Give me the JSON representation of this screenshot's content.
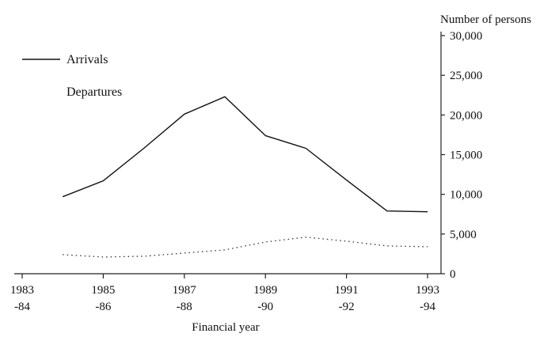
{
  "chart_data": {
    "type": "line",
    "xlabel": "Financial year",
    "ylabel": "Number of persons",
    "x_ticks": [
      {
        "year": 1983,
        "line1": "1983",
        "line2": "-84"
      },
      {
        "year": 1985,
        "line1": "1985",
        "line2": "-86"
      },
      {
        "year": 1987,
        "line1": "1987",
        "line2": "-88"
      },
      {
        "year": 1989,
        "line1": "1989",
        "line2": "-90"
      },
      {
        "year": 1991,
        "line1": "1991",
        "line2": "-92"
      },
      {
        "year": 1993,
        "line1": "1993",
        "line2": "-94"
      }
    ],
    "x": [
      1984,
      1985,
      1986,
      1987,
      1988,
      1989,
      1990,
      1991,
      1992,
      1993
    ],
    "xlim": [
      1983,
      1993
    ],
    "ylim": [
      0,
      30000
    ],
    "y_ticks": [
      0,
      5000,
      10000,
      15000,
      20000,
      25000,
      30000
    ],
    "y_tick_labels": [
      "0",
      "5,000",
      "10,000",
      "15,000",
      "20,000",
      "25,000",
      "30,000"
    ],
    "grid": false,
    "legend_position": "top-left",
    "series": [
      {
        "name": "Arrivals",
        "style": "solid",
        "values": [
          9700,
          11700,
          15800,
          20100,
          22300,
          17400,
          15800,
          11800,
          7900,
          7800
        ]
      },
      {
        "name": "Departures",
        "style": "dotted",
        "values": [
          2400,
          2100,
          2200,
          2600,
          3000,
          4000,
          4600,
          4100,
          3500,
          3400
        ]
      }
    ]
  }
}
